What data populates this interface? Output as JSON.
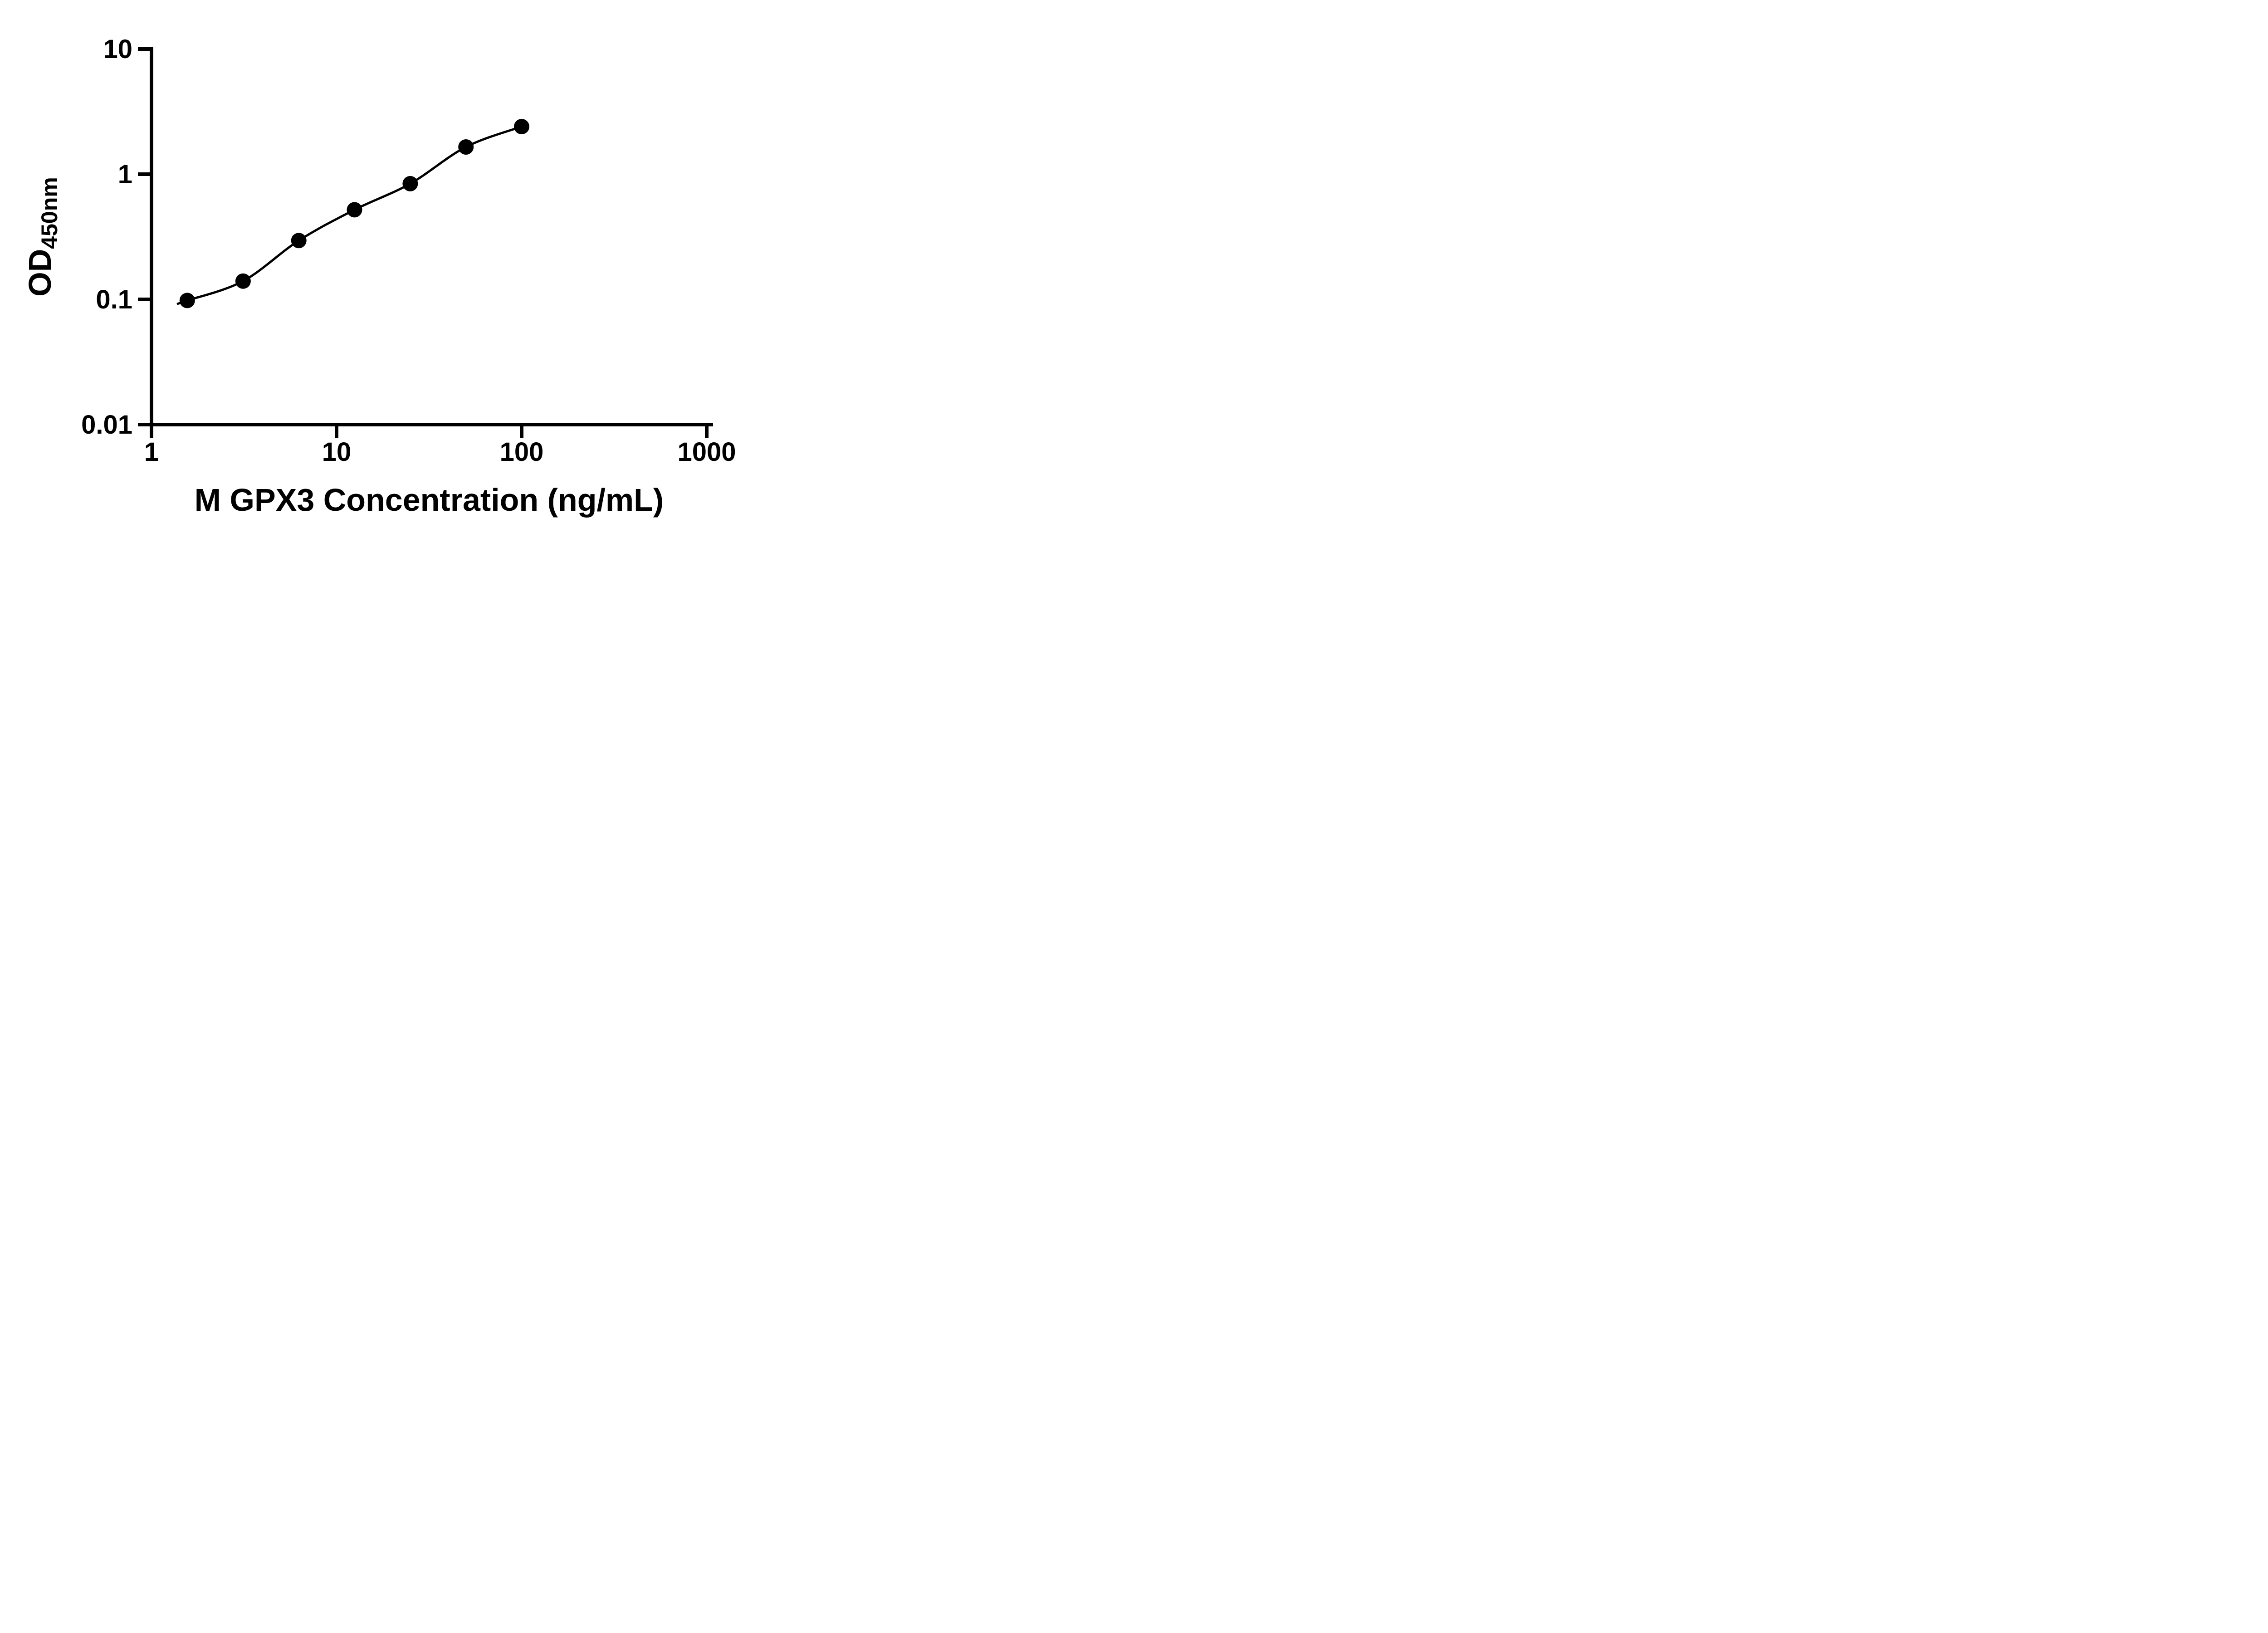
{
  "page": {
    "background": "#ffffff"
  },
  "chart_data": {
    "type": "scatter",
    "title": "",
    "xlabel": "M GPX3 Concentration (ng/mL)",
    "ylabel_main": "OD",
    "ylabel_sub": "450nm",
    "x_scale": "log10",
    "y_scale": "log10",
    "xlim": [
      1,
      1000
    ],
    "ylim": [
      0.01,
      10
    ],
    "x_tick_values": [
      1,
      10,
      100,
      1000
    ],
    "x_tick_labels": [
      "1",
      "10",
      "100",
      "1000"
    ],
    "y_tick_values": [
      0.01,
      0.1,
      1,
      10
    ],
    "y_tick_labels": [
      "0.01",
      "0.1",
      "1",
      "10"
    ],
    "grid": false,
    "legend": "none",
    "axis_color": "#000000",
    "curve_color": "#000000",
    "marker_color": "#000000",
    "marker_shape": "filled-circle",
    "series": [
      {
        "x": [
          1.56,
          3.125,
          6.25,
          12.5,
          25,
          50,
          100
        ],
        "y": [
          0.098,
          0.14,
          0.295,
          0.52,
          0.84,
          1.65,
          2.4
        ]
      }
    ]
  }
}
